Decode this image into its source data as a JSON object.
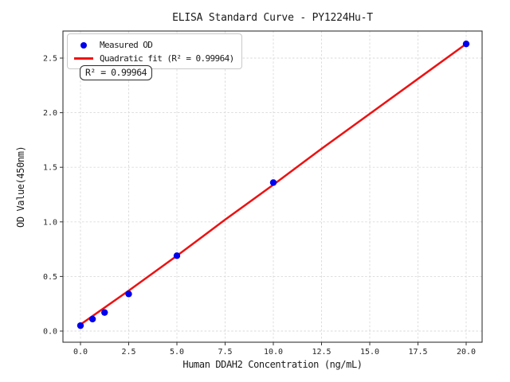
{
  "figure": {
    "title": "ELISA Standard Curve - PY1224Hu-T",
    "xlabel": "Human DDAH2 Concentration (ng/mL)",
    "ylabel": "OD Value(450nm)",
    "annotation": "R² = 0.99964",
    "legend": {
      "position": "upper left",
      "items": [
        {
          "label": "Measured OD",
          "marker": "dot",
          "color": "#0000ee"
        },
        {
          "label": "Quadratic fit (R² = 0.99964)",
          "marker": "line",
          "color": "#ee1111"
        }
      ]
    }
  },
  "chart_data": {
    "type": "scatter",
    "title": "ELISA Standard Curve - PY1224Hu-T",
    "xlabel": "Human DDAH2 Concentration (ng/mL)",
    "ylabel": "OD Value(450nm)",
    "x_ticks": [
      0,
      2.5,
      5,
      7.5,
      10,
      12.5,
      15,
      17.5,
      20
    ],
    "y_ticks": [
      0,
      0.5,
      1,
      1.5,
      2,
      2.5
    ],
    "xlim": [
      -0.91,
      20.83
    ],
    "ylim": [
      -0.1,
      2.75
    ],
    "grid": true,
    "grid_style": "dashed",
    "legend_position": "upper left",
    "r_squared": 0.99964,
    "series": [
      {
        "name": "Measured OD",
        "type": "scatter",
        "color": "#0000ee",
        "x": [
          0,
          0.625,
          1.25,
          2.5,
          5,
          10,
          20
        ],
        "y": [
          0.05,
          0.11,
          0.17,
          0.34,
          0.69,
          1.36,
          2.63
        ]
      },
      {
        "name": "Quadratic fit (R² = 0.99964)",
        "type": "line",
        "color": "#ee1111",
        "x": [
          0,
          2.5,
          5,
          7.5,
          10,
          12.5,
          15,
          17.5,
          20
        ],
        "y": [
          0.06,
          0.37,
          0.69,
          1.02,
          1.34,
          1.67,
          1.99,
          2.31,
          2.63
        ]
      }
    ],
    "colors": {
      "grid": "#d9d9d9",
      "axis": "#333333",
      "tick_text": "#262626",
      "scatter": "#0000ee",
      "fit_line": "#ee1111"
    }
  }
}
